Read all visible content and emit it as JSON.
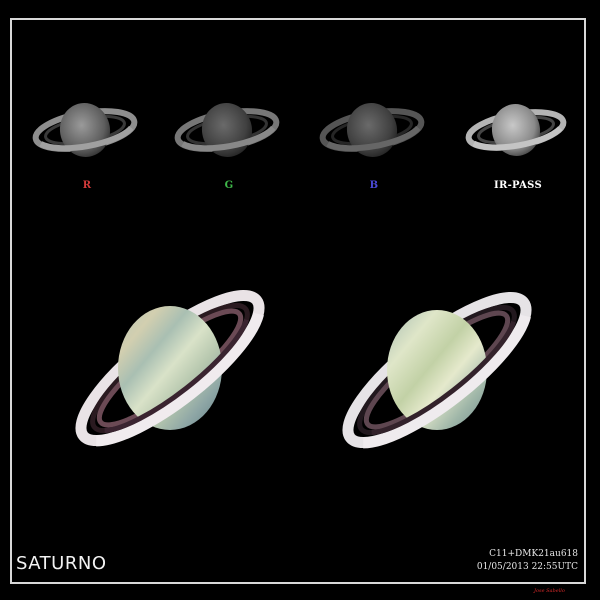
{
  "labels": {
    "r": {
      "text": "R",
      "color": "#d23a3a"
    },
    "g": {
      "text": "G",
      "color": "#3fb84a"
    },
    "b": {
      "text": "B",
      "color": "#4a4ad8"
    },
    "ir": {
      "text": "IR-PASS",
      "color": "#ffffff"
    }
  },
  "title": "SATURNO",
  "info": {
    "equipment": "C11+DMK21au618",
    "datetime": "01/05/2013 22:55UTC"
  },
  "signature": "Jose Sabello"
}
